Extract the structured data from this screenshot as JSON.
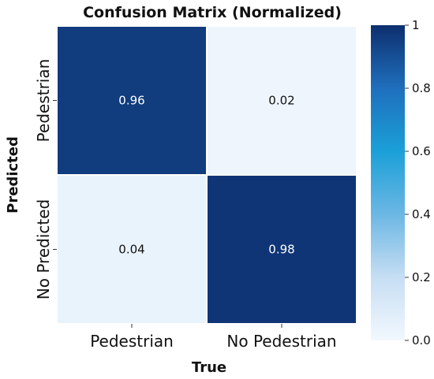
{
  "chart_data": {
    "type": "heatmap",
    "title": "Confusion Matrix (Normalized)",
    "xlabel": "True",
    "ylabel": "Predicted",
    "x_categories": [
      "Pedestrian",
      "No Pedestrian"
    ],
    "y_categories": [
      "Pedestrian",
      "No Predicted"
    ],
    "values": [
      [
        0.96,
        0.02
      ],
      [
        0.04,
        0.98
      ]
    ],
    "value_labels": [
      [
        "0.96",
        "0.02"
      ],
      [
        "0.04",
        "0.98"
      ]
    ],
    "colorbar": {
      "range": [
        0,
        1
      ],
      "ticks": [
        0,
        0.2,
        0.4,
        0.6,
        0.8,
        1
      ],
      "tick_labels": [
        "0.0",
        "0.2",
        "0.4",
        "0.6",
        "0.8",
        "1"
      ],
      "colormap": "Blues",
      "color_stops": [
        "#f2f8fe",
        "#c6def3",
        "#6cb7e4",
        "#1ba0d8",
        "#1f6fbd",
        "#0d2f6e"
      ]
    },
    "grid": false,
    "colorbar_placement": "right"
  }
}
